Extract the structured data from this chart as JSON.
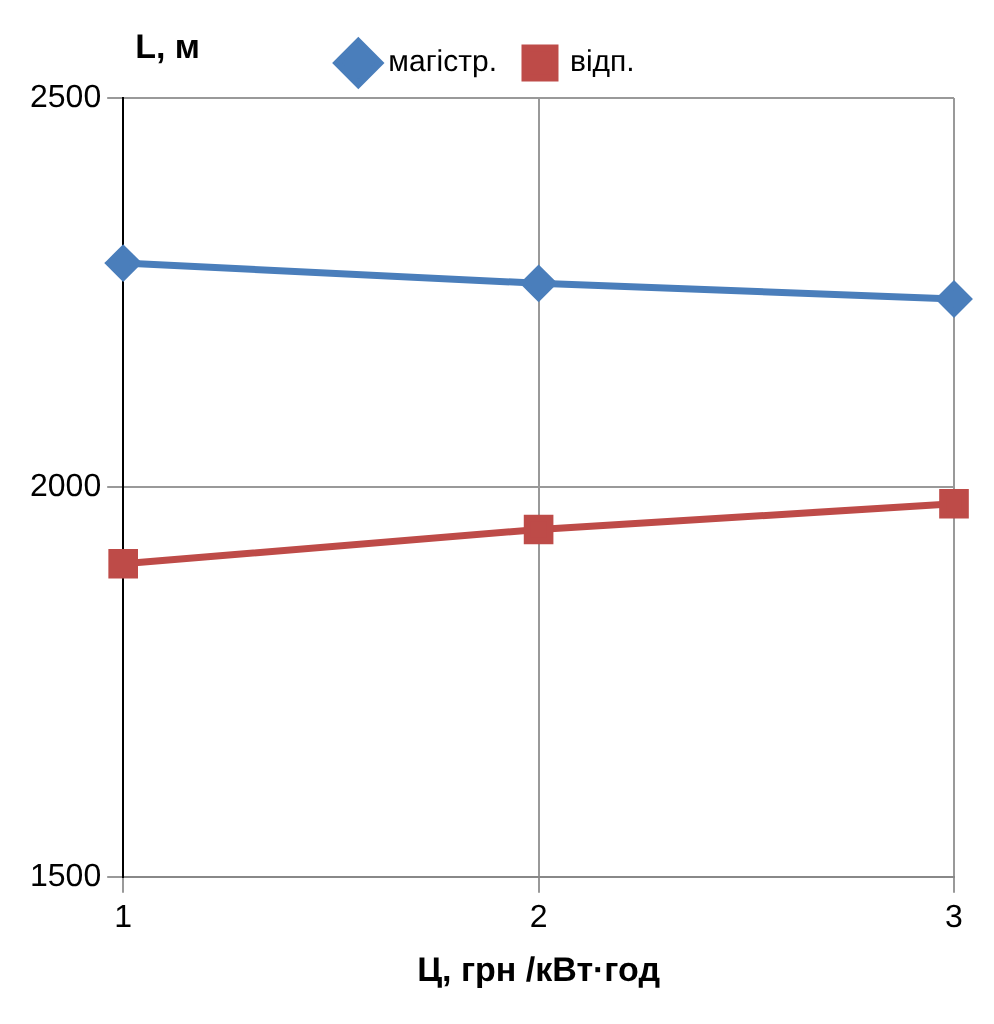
{
  "chart_data": {
    "type": "line",
    "xlabel": "Ц, грн /кВт·год",
    "ylabel": "L, м",
    "x": [
      1,
      2,
      3
    ],
    "xlim": [
      1,
      3
    ],
    "xticks": [
      1,
      2,
      3
    ],
    "ylim": [
      1500,
      2500
    ],
    "yticks": [
      1500,
      2000,
      2500
    ],
    "grid": true,
    "legend": "top",
    "series": [
      {
        "name": "магістр.",
        "color": "#4a7ebb",
        "marker": "diamond",
        "values": [
          2288,
          2262,
          2242
        ]
      },
      {
        "name": "відп.",
        "color": "#be4b48",
        "marker": "square",
        "values": [
          1902,
          1946,
          1979
        ]
      }
    ]
  }
}
